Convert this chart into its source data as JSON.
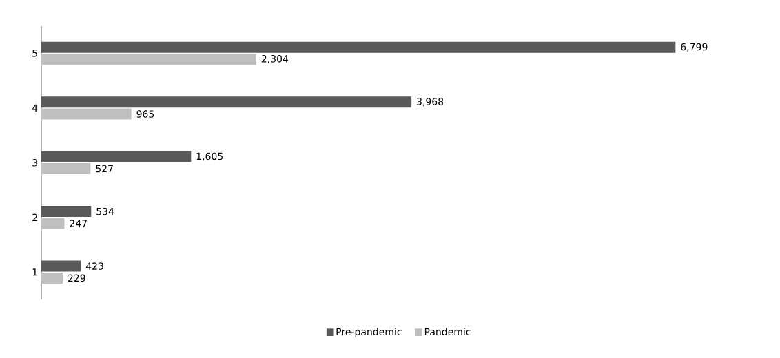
{
  "chart_data": {
    "type": "bar",
    "orientation": "horizontal",
    "categories": [
      "5",
      "4",
      "3",
      "2",
      "1"
    ],
    "series": [
      {
        "name": "Pre-pandemic",
        "color": "#595959",
        "values": [
          6799,
          3968,
          1605,
          534,
          423
        ],
        "value_labels": [
          "6,799",
          "3,968",
          "1,605",
          "534",
          "423"
        ]
      },
      {
        "name": "Pandemic",
        "color": "#bfbfbf",
        "values": [
          2304,
          965,
          527,
          247,
          229
        ],
        "value_labels": [
          "2,304",
          "965",
          "527",
          "247",
          "229"
        ]
      }
    ],
    "legend": "bottom"
  }
}
